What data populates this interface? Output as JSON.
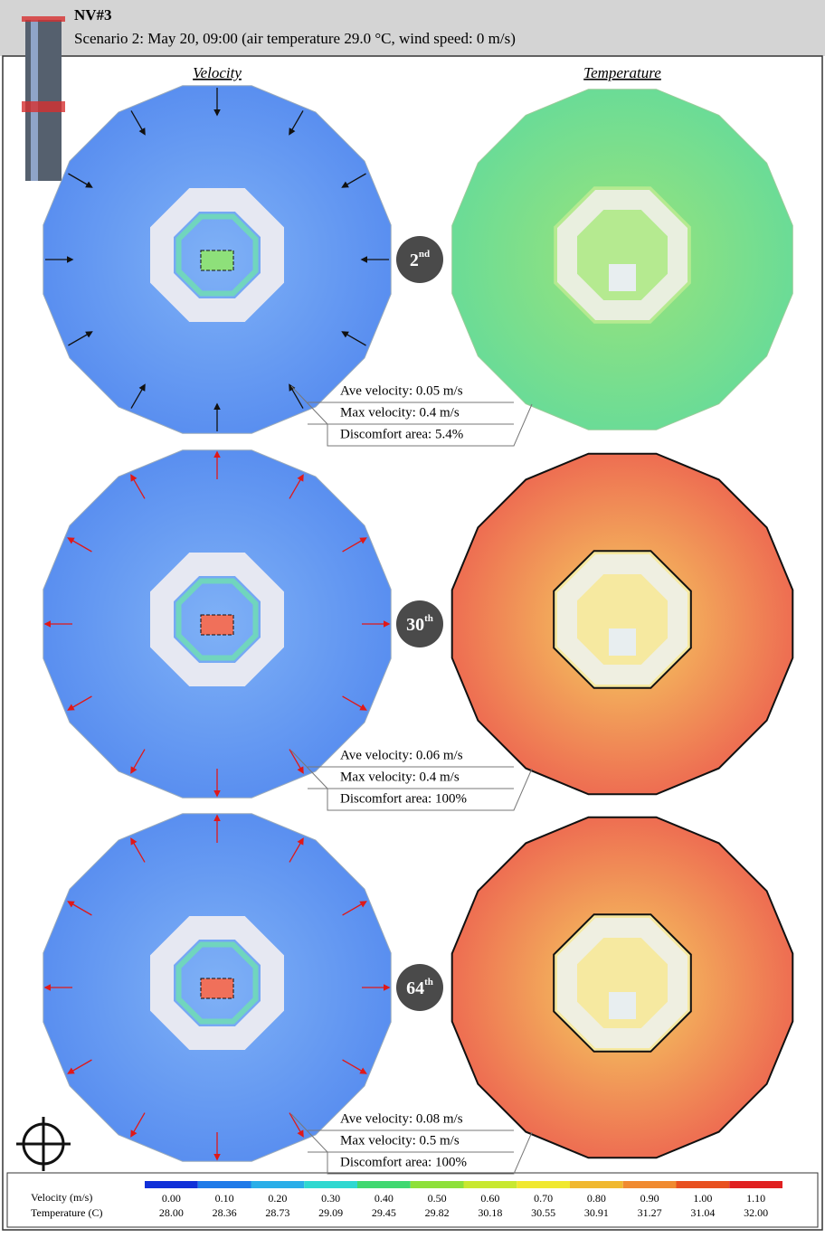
{
  "header": {
    "title": "NV#3",
    "subtitle": "Scenario 2: May 20, 09:00  (air temperature 29.0 °C, wind speed: 0 m/s)"
  },
  "columns": [
    "Velocity",
    "Temperature"
  ],
  "rows": [
    {
      "floor": "2",
      "suffix": "nd",
      "stats": [
        "Ave velocity: 0.05 m/s",
        "Max velocity: 0.4 m/s",
        "Discomfort area: 5.4%"
      ]
    },
    {
      "floor": "30",
      "suffix": "th",
      "stats": [
        "Ave velocity: 0.06 m/s",
        "Max velocity: 0.4 m/s",
        "Discomfort area: 100%"
      ]
    },
    {
      "floor": "64",
      "suffix": "th",
      "stats": [
        "Ave velocity: 0.08 m/s",
        "Max velocity: 0.5 m/s",
        "Discomfort area: 100%"
      ]
    }
  ],
  "legend": {
    "velocity_label": "Velocity (m/s)",
    "temperature_label": "Temperature (C)",
    "velocity": [
      "0.00",
      "0.10",
      "0.20",
      "0.30",
      "0.40",
      "0.50",
      "0.60",
      "0.70",
      "0.80",
      "0.90",
      "1.00",
      "1.10"
    ],
    "temperature": [
      "28.00",
      "28.36",
      "28.73",
      "29.09",
      "29.45",
      "29.82",
      "30.18",
      "30.55",
      "30.91",
      "31.27",
      "31.04",
      "32.00"
    ]
  }
}
